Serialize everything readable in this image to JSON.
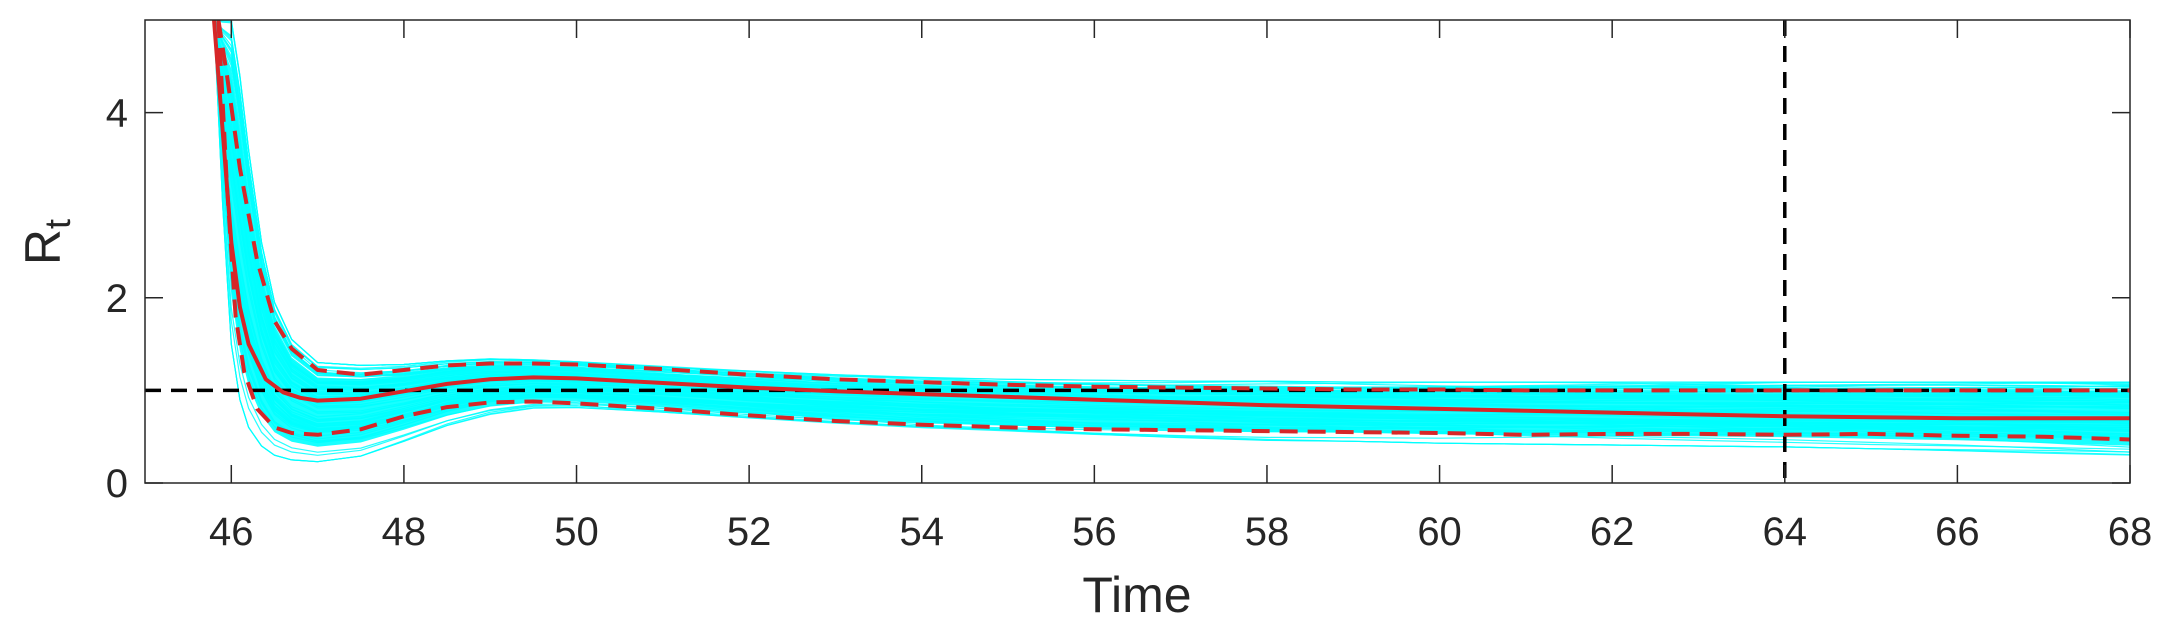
{
  "chart_data": {
    "type": "line",
    "title": "",
    "xlabel": "Time",
    "ylabel": {
      "main": "R",
      "subscript": "t"
    },
    "xlim": [
      45,
      68
    ],
    "ylim": [
      0,
      5
    ],
    "xticks": [
      46,
      48,
      50,
      52,
      54,
      56,
      58,
      60,
      62,
      64,
      66,
      68
    ],
    "yticks": [
      0,
      2,
      4
    ],
    "grid": false,
    "legend": "none",
    "reference_lines": {
      "horizontal_y": 1,
      "vertical_x": 64
    },
    "colors": {
      "samples": "#00ffff",
      "median": "#d62728",
      "bounds": "#d62728",
      "reference": "#000000",
      "axes": "#262626"
    },
    "series": [
      {
        "role": "median",
        "x": [
          45.8,
          45.9,
          46.0,
          46.1,
          46.2,
          46.4,
          46.6,
          46.8,
          47.0,
          47.5,
          48.0,
          48.5,
          49.0,
          49.5,
          50,
          51,
          52,
          53,
          54,
          55,
          56,
          57,
          58,
          59,
          60,
          61,
          62,
          63,
          64,
          65,
          66,
          67,
          68
        ],
        "y": [
          5.0,
          3.8,
          2.6,
          1.9,
          1.5,
          1.12,
          0.98,
          0.92,
          0.89,
          0.91,
          0.99,
          1.07,
          1.12,
          1.14,
          1.13,
          1.08,
          1.03,
          0.99,
          0.96,
          0.93,
          0.9,
          0.87,
          0.84,
          0.82,
          0.8,
          0.78,
          0.76,
          0.74,
          0.72,
          0.71,
          0.7,
          0.7,
          0.7
        ]
      },
      {
        "role": "upper-bound",
        "x": [
          45.85,
          45.95,
          46.1,
          46.3,
          46.5,
          46.7,
          47.0,
          47.5,
          48.0,
          48.5,
          49.0,
          49.5,
          50,
          51,
          52,
          53,
          54,
          55,
          56,
          57,
          58,
          59,
          60,
          61,
          62,
          63,
          64,
          65,
          66,
          67,
          68
        ],
        "y": [
          5.0,
          4.4,
          3.4,
          2.4,
          1.75,
          1.45,
          1.22,
          1.17,
          1.22,
          1.27,
          1.29,
          1.29,
          1.28,
          1.23,
          1.17,
          1.12,
          1.09,
          1.06,
          1.04,
          1.03,
          1.02,
          1.01,
          1.01,
          1.0,
          1.0,
          1.0,
          1.0,
          1.0,
          1.0,
          1.0,
          1.0
        ]
      },
      {
        "role": "lower-bound",
        "x": [
          45.85,
          45.95,
          46.05,
          46.15,
          46.3,
          46.5,
          46.7,
          47.0,
          47.5,
          48.0,
          48.5,
          49.0,
          49.5,
          50,
          51,
          52,
          53,
          54,
          55,
          56,
          57,
          58,
          59,
          60,
          61,
          62,
          63,
          64,
          65,
          66,
          67,
          68
        ],
        "y": [
          5.0,
          3.2,
          1.8,
          1.2,
          0.8,
          0.6,
          0.54,
          0.52,
          0.58,
          0.72,
          0.82,
          0.87,
          0.88,
          0.86,
          0.8,
          0.73,
          0.67,
          0.63,
          0.6,
          0.58,
          0.57,
          0.56,
          0.55,
          0.54,
          0.52,
          0.53,
          0.53,
          0.52,
          0.53,
          0.51,
          0.5,
          0.47
        ]
      }
    ],
    "sample_band": {
      "count": 80,
      "x": [
        45.8,
        45.9,
        46.0,
        46.1,
        46.2,
        46.35,
        46.5,
        46.7,
        47.0,
        47.5,
        48.0,
        48.5,
        49.0,
        49.5,
        50,
        51,
        52,
        53,
        54,
        55,
        56,
        57,
        58,
        59,
        60,
        61,
        62,
        63,
        64,
        65,
        66,
        67,
        68
      ],
      "upper": [
        5.0,
        5.0,
        5.0,
        4.4,
        3.6,
        2.6,
        1.95,
        1.55,
        1.3,
        1.27,
        1.28,
        1.32,
        1.34,
        1.33,
        1.31,
        1.26,
        1.21,
        1.17,
        1.14,
        1.12,
        1.11,
        1.1,
        1.1,
        1.09,
        1.09,
        1.09,
        1.09,
        1.09,
        1.09,
        1.09,
        1.09,
        1.09,
        1.09
      ],
      "lower": [
        5.0,
        3.0,
        1.5,
        0.9,
        0.6,
        0.4,
        0.3,
        0.25,
        0.23,
        0.29,
        0.45,
        0.62,
        0.74,
        0.8,
        0.8,
        0.74,
        0.67,
        0.61,
        0.56,
        0.53,
        0.5,
        0.48,
        0.46,
        0.45,
        0.43,
        0.42,
        0.41,
        0.4,
        0.39,
        0.37,
        0.35,
        0.32,
        0.28
      ]
    }
  }
}
